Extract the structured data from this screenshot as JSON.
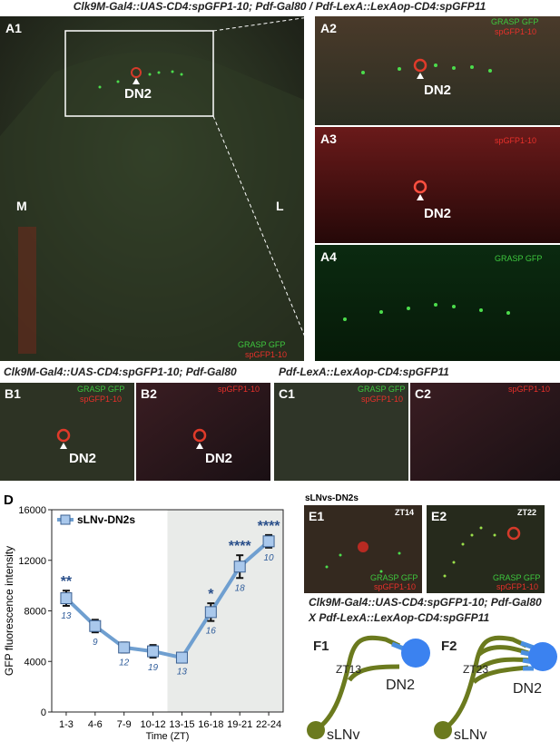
{
  "figure": {
    "title_a": "Clk9M-Gal4::UAS-CD4:spGFP1-10; Pdf-Gal80 / Pdf-LexA::LexAop-CD4:spGFP11",
    "title_b": "Clk9M-Gal4::UAS-CD4:spGFP1-10; Pdf-Gal80",
    "title_c": "Pdf-LexA::LexAop-CD4:spGFP11",
    "panel_labels": [
      "A1",
      "A2",
      "A3",
      "A4",
      "B1",
      "B2",
      "C1",
      "C2",
      "D",
      "E1",
      "E2",
      "F1",
      "F2"
    ],
    "labels": {
      "grasp": "GRASP GFP",
      "spgfp": "spGFP1-10",
      "dn2": "DN2",
      "medial": "M",
      "lateral": "L"
    },
    "e": {
      "title": "sLNvs-DN2s",
      "times": [
        "ZT14",
        "ZT22"
      ],
      "caption": [
        "Clk9M-Gal4::UAS-CD4:spGFP1-10; Pdf-Gal80",
        "X Pdf-LexA::LexAop-CD4:spGFP11"
      ]
    },
    "f": {
      "times": [
        "ZT13",
        "ZT23"
      ],
      "target": "DN2",
      "source": "sLNv"
    }
  },
  "chart_data": {
    "type": "line",
    "xlabel": "Time (ZT)",
    "ylabel": "GFP fluorescence intensity",
    "categories": [
      "1-3",
      "4-6",
      "7-9",
      "10-12",
      "13-15",
      "16-18",
      "19-21",
      "22-24"
    ],
    "series": [
      {
        "name": "sLNv-DN2s",
        "color": "#6f9fd0",
        "values": [
          9000,
          6800,
          5100,
          4800,
          4300,
          7900,
          11500,
          13500
        ],
        "errors": [
          600,
          500,
          400,
          500,
          300,
          700,
          900,
          500
        ],
        "n": [
          13,
          9,
          12,
          19,
          13,
          16,
          18,
          10
        ],
        "significance": [
          "**",
          null,
          null,
          null,
          null,
          "*",
          "****",
          "****"
        ]
      }
    ],
    "ylim": [
      0,
      16000
    ],
    "yticks": [
      0,
      4000,
      8000,
      12000,
      16000
    ],
    "shaded": {
      "from": "13-15",
      "to": "22-24"
    },
    "legend": "top-left"
  }
}
